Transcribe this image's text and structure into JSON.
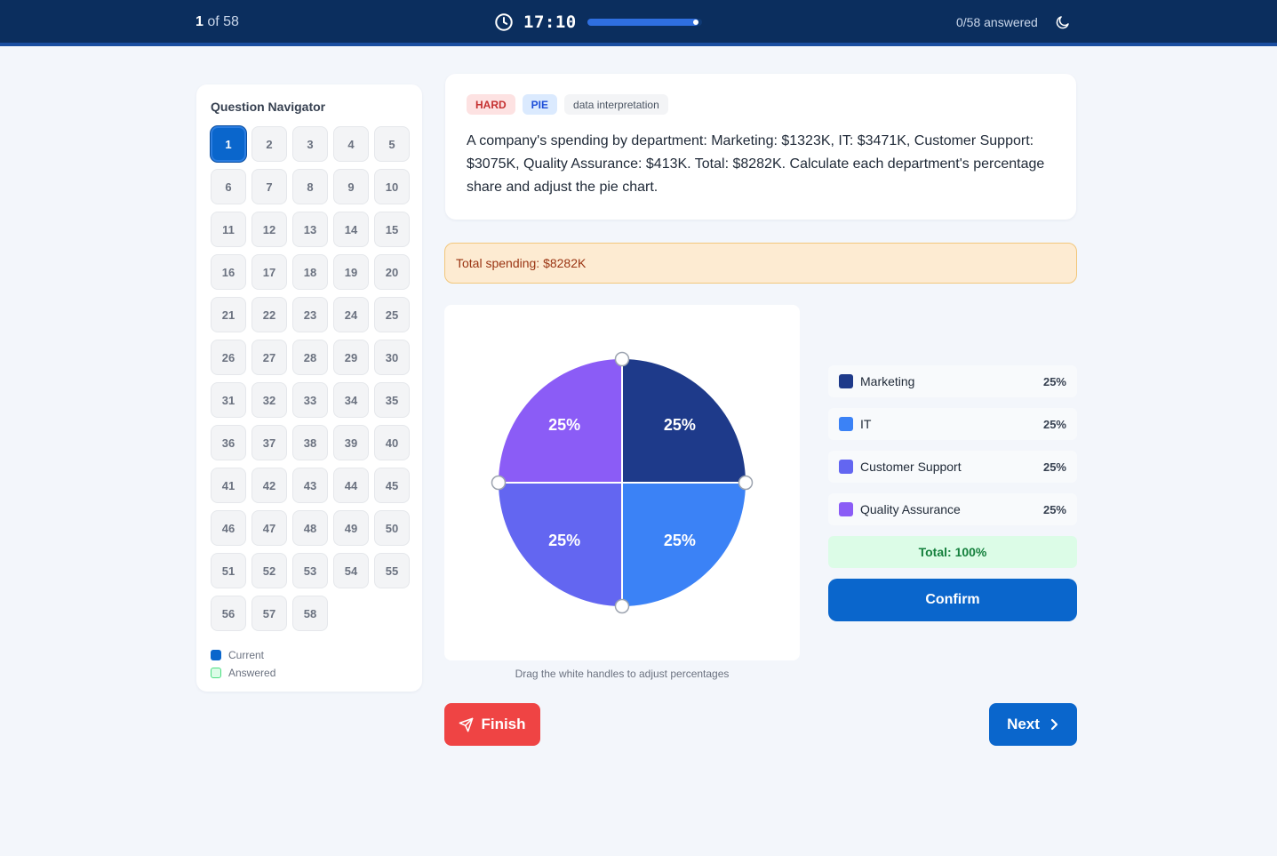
{
  "header": {
    "current_question": "1",
    "of_total": " of 58",
    "timer": "17:10",
    "timer_remaining": 0.97,
    "answered": "0/58 answered",
    "icons": [
      "clock-icon",
      "moon-icon"
    ]
  },
  "navigator": {
    "title": "Question Navigator",
    "current": 1,
    "questions": [
      "1",
      "2",
      "3",
      "4",
      "5",
      "6",
      "7",
      "8",
      "9",
      "10",
      "11",
      "12",
      "13",
      "14",
      "15",
      "16",
      "17",
      "18",
      "19",
      "20",
      "21",
      "22",
      "23",
      "24",
      "25",
      "26",
      "27",
      "28",
      "29",
      "30",
      "31",
      "32",
      "33",
      "34",
      "35",
      "36",
      "37",
      "38",
      "39",
      "40",
      "41",
      "42",
      "43",
      "44",
      "45",
      "46",
      "47",
      "48",
      "49",
      "50",
      "51",
      "52",
      "53",
      "54",
      "55",
      "56",
      "57",
      "58"
    ],
    "legend": [
      {
        "label": "Current",
        "color": "#0a66cc"
      },
      {
        "label": "Answered",
        "color": "#bbf7d0"
      }
    ]
  },
  "question": {
    "tags": {
      "difficulty": "HARD",
      "type": "PIE",
      "topic": "data interpretation"
    },
    "text": "A company's spending by department: Marketing: $1323K, IT: $3471K, Customer Support: $3075K, Quality Assurance: $413K. Total: $8282K. Calculate each department's percentage share and adjust the pie chart.",
    "total_banner": "Total spending: $8282K"
  },
  "chart_data": {
    "type": "pie",
    "slices": [
      {
        "name": "Marketing",
        "value": 25,
        "label": "25%",
        "color": "#1e3a8a"
      },
      {
        "name": "IT",
        "value": 25,
        "label": "25%",
        "color": "#3b82f6"
      },
      {
        "name": "Customer Support",
        "value": 25,
        "label": "25%",
        "color": "#6366f1"
      },
      {
        "name": "Quality Assurance",
        "value": 25,
        "label": "25%",
        "color": "#8b5cf6"
      }
    ],
    "hint": "Drag the white handles to adjust percentages"
  },
  "legend_panel": {
    "items": [
      {
        "name": "Marketing",
        "pct": "25%",
        "color": "#1e3a8a"
      },
      {
        "name": "IT",
        "pct": "25%",
        "color": "#3b82f6"
      },
      {
        "name": "Customer Support",
        "pct": "25%",
        "color": "#6366f1"
      },
      {
        "name": "Quality Assurance",
        "pct": "25%",
        "color": "#8b5cf6"
      }
    ],
    "total": "Total: 100%",
    "confirm_label": "Confirm"
  },
  "footer": {
    "finish_label": "Finish",
    "next_label": "Next",
    "icons": [
      "send-icon",
      "chevron-right-icon"
    ]
  }
}
